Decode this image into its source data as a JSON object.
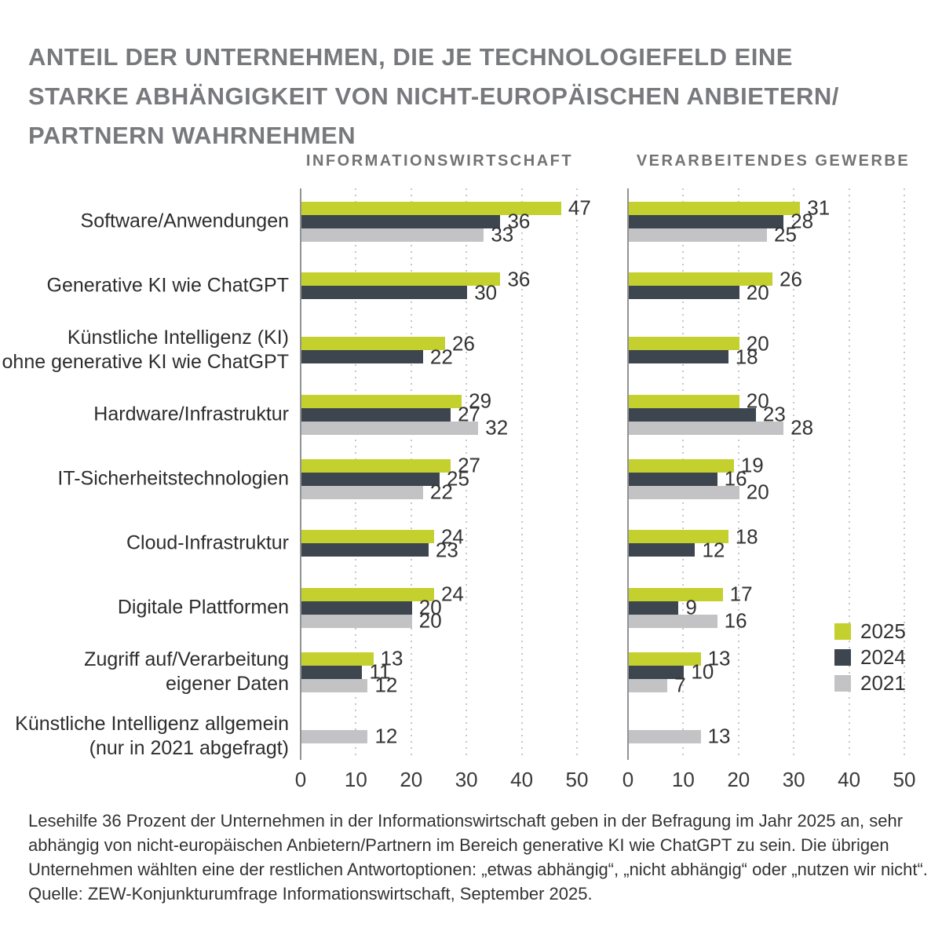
{
  "title": {
    "lines": [
      "ANTEIL DER UNTERNEHMEN, DIE JE TECHNOLOGIEFELD EINE",
      "STARKE ABHÄNGIGKEIT VON NICHT-EUROPÄISCHEN ANBIETERN/",
      "PARTNERN WAHRNEHMEN"
    ]
  },
  "chart_data": {
    "type": "bar",
    "orientation": "horizontal",
    "xlim": [
      0,
      50
    ],
    "x_ticks": [
      0,
      10,
      20,
      30,
      40,
      50
    ],
    "grid": "dotted-vertical",
    "legend_position": "right-lower",
    "panels": [
      {
        "title": "INFORMATIONSWIRTSCHAFT"
      },
      {
        "title": "VERARBEITENDES GEWERBE"
      }
    ],
    "legend": [
      {
        "label": "2025",
        "color": "#c3d02e"
      },
      {
        "label": "2024",
        "color": "#3d454e"
      },
      {
        "label": "2021",
        "color": "#c3c3c5"
      }
    ],
    "categories": [
      {
        "label": "Software/Anwendungen",
        "informationswirtschaft": [
          47,
          36,
          33
        ],
        "verarbeitendes_gewerbe": [
          31,
          28,
          25
        ]
      },
      {
        "label": "Generative KI wie ChatGPT",
        "informationswirtschaft": [
          36,
          30,
          null
        ],
        "verarbeitendes_gewerbe": [
          26,
          20,
          null
        ]
      },
      {
        "label": "Künstliche Intelligenz (KI)\nohne generative KI wie ChatGPT",
        "informationswirtschaft": [
          26,
          22,
          null
        ],
        "verarbeitendes_gewerbe": [
          20,
          18,
          null
        ]
      },
      {
        "label": "Hardware/Infrastruktur",
        "informationswirtschaft": [
          29,
          27,
          32
        ],
        "verarbeitendes_gewerbe": [
          20,
          23,
          28
        ]
      },
      {
        "label": "IT-Sicherheitstechnologien",
        "informationswirtschaft": [
          27,
          25,
          22
        ],
        "verarbeitendes_gewerbe": [
          19,
          16,
          20
        ]
      },
      {
        "label": "Cloud-Infrastruktur",
        "informationswirtschaft": [
          24,
          23,
          null
        ],
        "verarbeitendes_gewerbe": [
          18,
          12,
          null
        ]
      },
      {
        "label": "Digitale Plattformen",
        "informationswirtschaft": [
          24,
          20,
          20
        ],
        "verarbeitendes_gewerbe": [
          17,
          9,
          16
        ]
      },
      {
        "label": "Zugriff auf/Verarbeitung\neigener Daten",
        "informationswirtschaft": [
          13,
          11,
          12
        ],
        "verarbeitendes_gewerbe": [
          13,
          10,
          7
        ]
      },
      {
        "label": "Künstliche Intelligenz allgemein\n(nur in 2021 abgefragt)",
        "informationswirtschaft": [
          null,
          null,
          12
        ],
        "verarbeitendes_gewerbe": [
          null,
          null,
          13
        ]
      }
    ]
  },
  "footnote": "Lesehilfe 36 Prozent der Unternehmen in der Informationswirtschaft geben in der Befragung im Jahr 2025 an, sehr abhängig von nicht-europäischen Anbietern/Partnern im Bereich generative KI wie ChatGPT zu sein. Die übrigen Unternehmen wählten eine der restlichen Antwortoptionen: „etwas abhängig“, „nicht abhängig“ oder „nutzen wir nicht“. Quelle: ZEW-Konjunkturumfrage Informationswirtschaft, September 2025."
}
